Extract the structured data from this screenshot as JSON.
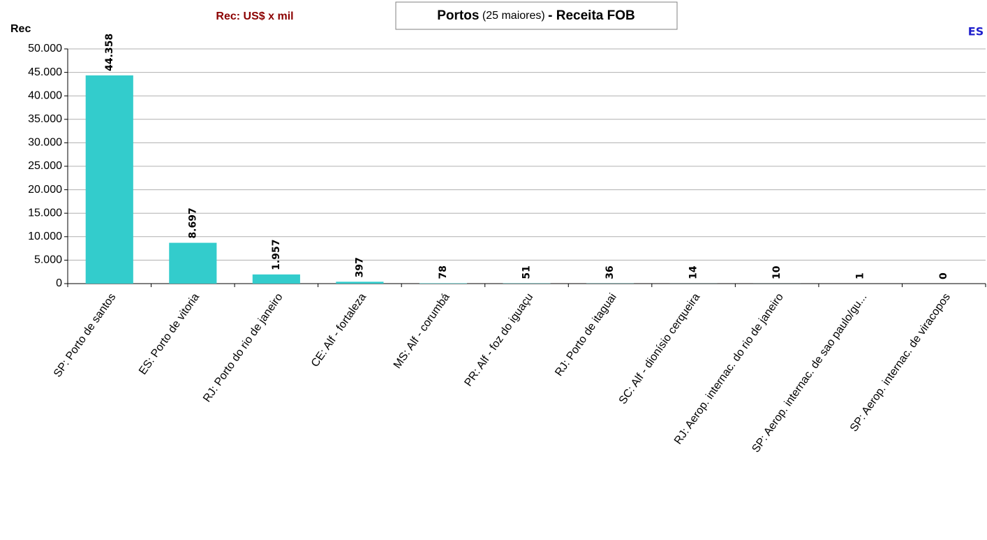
{
  "chart_data": {
    "type": "bar",
    "title": [
      "Portos",
      "(25 maiores)",
      "- Receita FOB"
    ],
    "subtitle": "Rec: US$ x mil",
    "y_label": "Rec",
    "annotation": "ES",
    "categories": [
      "SP: Porto de santos",
      "ES: Porto de vitoria",
      "RJ: Porto do rio de janeiro",
      "CE: Alf - fortaleza",
      "MS: Alf - corumbá",
      "PR: Alf - foz do iguaçu",
      "RJ: Porto de itaguai",
      "SC: Alf - dionísio cerqueira",
      "RJ: Aerop. internac. do rio de janeiro",
      "SP: Aerop. internac. de sao paulo/gu...",
      "SP: Aerop. internac. de viracopos"
    ],
    "values": [
      44358,
      8697,
      1957,
      397,
      78,
      51,
      36,
      14,
      10,
      1,
      0
    ],
    "value_labels": [
      "44.358",
      "8.697",
      "1.957",
      "397",
      "78",
      "51",
      "36",
      "14",
      "10",
      "1",
      "0"
    ],
    "color": "#33cccc",
    "ylim": [
      0,
      50000
    ],
    "yticks": [
      0,
      {
        "value": 5000,
        "label": "5.000"
      },
      {
        "value": 10000,
        "label": "10.000"
      },
      {
        "value": 15000,
        "label": "15.000"
      },
      {
        "value": 20000,
        "label": "20.000"
      },
      {
        "value": 25000,
        "label": "25.000"
      },
      {
        "value": 30000,
        "label": "30.000"
      },
      {
        "value": 35000,
        "label": "35.000"
      },
      {
        "value": 40000,
        "label": "40.000"
      },
      {
        "value": 45000,
        "label": "45.000"
      },
      {
        "value": 50000,
        "label": "50.000"
      }
    ],
    "grid": true
  }
}
